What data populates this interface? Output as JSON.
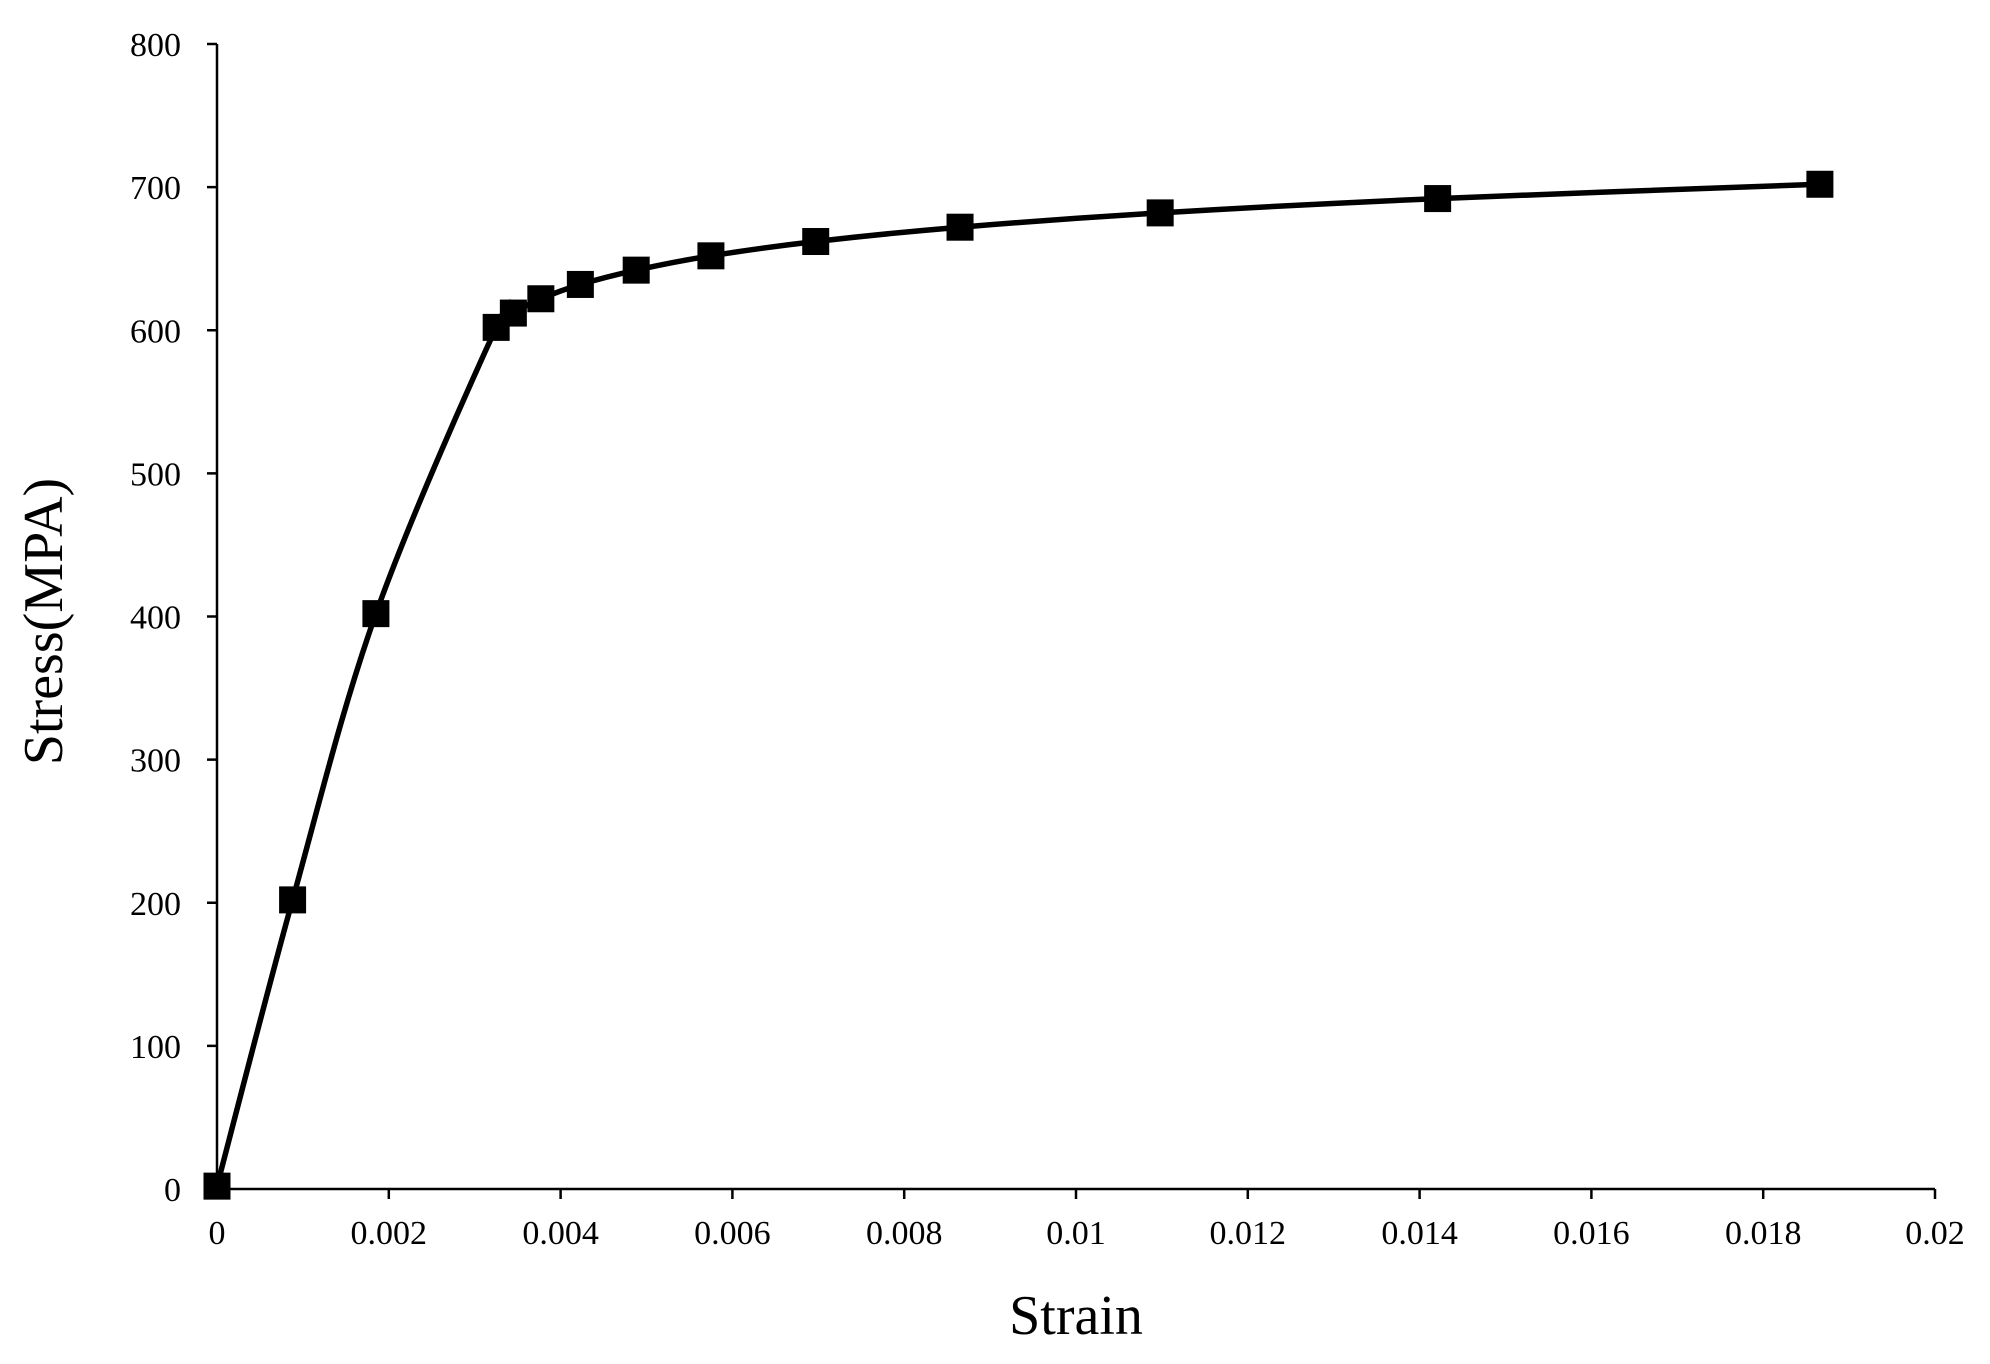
{
  "chart_data": {
    "type": "line",
    "title": "",
    "xlabel": "Strain",
    "ylabel": "Stress(MPA)",
    "xlim": [
      0,
      0.02
    ],
    "ylim": [
      0,
      800
    ],
    "x_ticks": [
      0,
      0.002,
      0.004,
      0.006,
      0.008,
      0.01,
      0.012,
      0.014,
      0.016,
      0.018,
      0.02
    ],
    "x_tick_labels": [
      "0",
      "0.002",
      "0.004",
      "0.006",
      "0.008",
      "0.01",
      "0.012",
      "0.014",
      "0.016",
      "0.018",
      "0.02"
    ],
    "y_ticks": [
      0,
      100,
      200,
      300,
      400,
      500,
      600,
      700,
      800
    ],
    "y_tick_labels": [
      "0",
      "100",
      "200",
      "300",
      "400",
      "500",
      "600",
      "700",
      "800"
    ],
    "grid": false,
    "legend": "none",
    "series": [
      {
        "marker": "square",
        "color": "#000000",
        "x": [
          0,
          0.00088,
          0.00185,
          0.00325,
          0.00345,
          0.00377,
          0.00423,
          0.00488,
          0.00575,
          0.00697,
          0.00865,
          0.01098,
          0.01421,
          0.01866
        ],
        "y": [
          2,
          202,
          402,
          602,
          612,
          622,
          632,
          642,
          652,
          662,
          672,
          682,
          692,
          702
        ]
      }
    ]
  }
}
